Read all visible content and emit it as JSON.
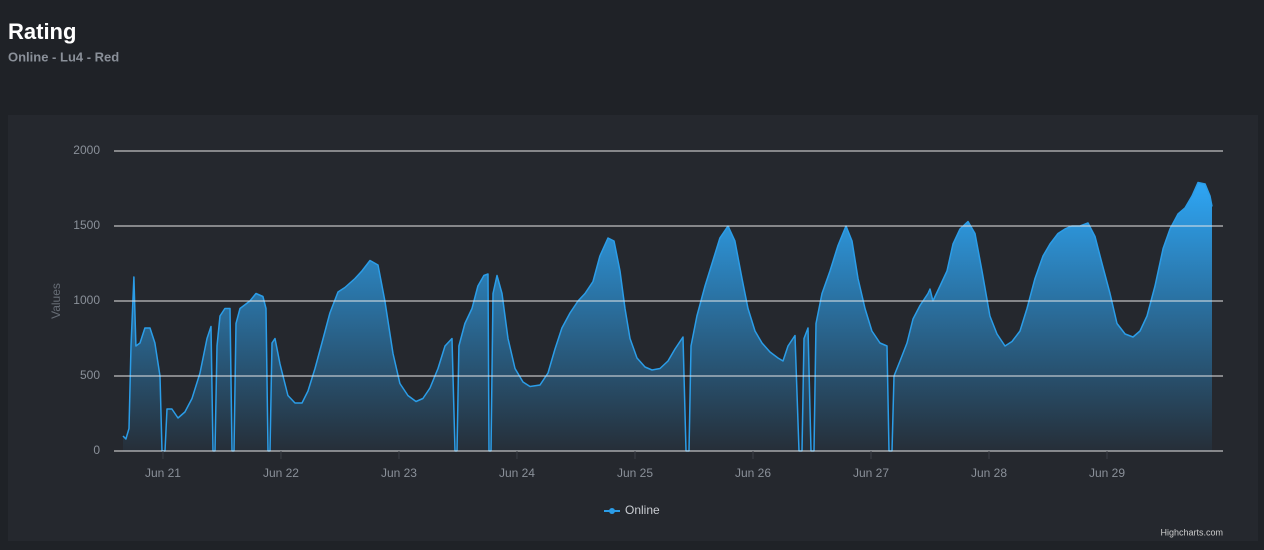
{
  "chart_data": {
    "type": "area",
    "title": "Rating",
    "subtitle": "Online - Lu4 - Red",
    "y_label": "Values",
    "credits": "Highcharts.com",
    "x": [
      20.661,
      20.686,
      20.712,
      20.729,
      20.754,
      20.771,
      20.805,
      20.847,
      20.89,
      20.932,
      20.975,
      20.992,
      21.017,
      21.034,
      21.076,
      21.127,
      21.186,
      21.246,
      21.314,
      21.373,
      21.407,
      21.424,
      21.441,
      21.458,
      21.483,
      21.525,
      21.568,
      21.585,
      21.602,
      21.619,
      21.653,
      21.737,
      21.788,
      21.847,
      21.873,
      21.89,
      21.907,
      21.924,
      21.949,
      21.992,
      22.059,
      22.119,
      22.178,
      22.229,
      22.288,
      22.347,
      22.415,
      22.483,
      22.542,
      22.627,
      22.686,
      22.754,
      22.822,
      22.881,
      22.949,
      23.008,
      23.076,
      23.144,
      23.203,
      23.263,
      23.331,
      23.39,
      23.449,
      23.475,
      23.492,
      23.508,
      23.559,
      23.619,
      23.669,
      23.72,
      23.754,
      23.763,
      23.78,
      23.797,
      23.831,
      23.873,
      23.924,
      23.983,
      24.051,
      24.11,
      24.195,
      24.263,
      24.322,
      24.381,
      24.449,
      24.517,
      24.576,
      24.644,
      24.703,
      24.771,
      24.822,
      24.873,
      24.915,
      24.958,
      25.017,
      25.085,
      25.144,
      25.212,
      25.28,
      25.339,
      25.407,
      25.432,
      25.458,
      25.475,
      25.525,
      25.593,
      25.653,
      25.72,
      25.788,
      25.847,
      25.907,
      25.958,
      26.017,
      26.076,
      26.144,
      26.212,
      26.254,
      26.297,
      26.356,
      26.39,
      26.415,
      26.432,
      26.466,
      26.492,
      26.517,
      26.534,
      26.585,
      26.653,
      26.72,
      26.788,
      26.839,
      26.89,
      26.949,
      27.008,
      27.076,
      27.136,
      27.153,
      27.178,
      27.195,
      27.246,
      27.305,
      27.356,
      27.415,
      27.483,
      27.5,
      27.525,
      27.585,
      27.644,
      27.695,
      27.754,
      27.822,
      27.881,
      27.941,
      28.008,
      28.068,
      28.136,
      28.195,
      28.263,
      28.322,
      28.39,
      28.458,
      28.517,
      28.585,
      28.644,
      28.703,
      28.771,
      28.839,
      28.898,
      28.958,
      29.025,
      29.085,
      29.153,
      29.22,
      29.28,
      29.339,
      29.407,
      29.475,
      29.534,
      29.602,
      29.661,
      29.72,
      29.771,
      29.831,
      29.873,
      29.89
    ],
    "series": [
      {
        "name": "Online",
        "color": "#2b9de8",
        "values": [
          100,
          80,
          150,
          700,
          1160,
          700,
          720,
          820,
          820,
          720,
          500,
          0,
          0,
          280,
          280,
          220,
          260,
          350,
          520,
          750,
          830,
          0,
          0,
          700,
          900,
          950,
          950,
          0,
          0,
          850,
          950,
          1000,
          1050,
          1030,
          950,
          0,
          0,
          720,
          750,
          580,
          370,
          320,
          320,
          400,
          550,
          720,
          920,
          1060,
          1090,
          1150,
          1200,
          1270,
          1240,
          1000,
          650,
          450,
          370,
          330,
          350,
          420,
          550,
          700,
          750,
          0,
          0,
          700,
          850,
          950,
          1100,
          1170,
          1180,
          0,
          0,
          1050,
          1170,
          1050,
          750,
          550,
          460,
          430,
          440,
          520,
          680,
          820,
          920,
          1000,
          1050,
          1130,
          1300,
          1420,
          1400,
          1200,
          950,
          750,
          620,
          560,
          540,
          550,
          600,
          680,
          760,
          0,
          0,
          700,
          900,
          1100,
          1250,
          1420,
          1500,
          1400,
          1150,
          950,
          800,
          720,
          660,
          620,
          600,
          700,
          770,
          0,
          0,
          750,
          820,
          0,
          0,
          850,
          1050,
          1200,
          1370,
          1500,
          1400,
          1150,
          950,
          800,
          720,
          700,
          0,
          0,
          500,
          600,
          720,
          880,
          970,
          1050,
          1080,
          1000,
          1100,
          1200,
          1380,
          1480,
          1530,
          1450,
          1200,
          900,
          780,
          700,
          730,
          800,
          950,
          1150,
          1300,
          1380,
          1450,
          1480,
          1500,
          1500,
          1520,
          1430,
          1250,
          1050,
          850,
          780,
          760,
          800,
          900,
          1100,
          1350,
          1480,
          1580,
          1620,
          1700,
          1790,
          1780,
          1700,
          1630
        ]
      }
    ],
    "xlim": [
      20.585,
      29.983
    ],
    "xticks": [
      {
        "value": 21,
        "label": "Jun 21"
      },
      {
        "value": 22,
        "label": "Jun 22"
      },
      {
        "value": 23,
        "label": "Jun 23"
      },
      {
        "value": 24,
        "label": "Jun 24"
      },
      {
        "value": 25,
        "label": "Jun 25"
      },
      {
        "value": 26,
        "label": "Jun 26"
      },
      {
        "value": 27,
        "label": "Jun 27"
      },
      {
        "value": 28,
        "label": "Jun 28"
      },
      {
        "value": 29,
        "label": "Jun 29"
      }
    ],
    "ylim": [
      0,
      2000
    ],
    "yticks": [
      0,
      500,
      1000,
      1500,
      2000
    ],
    "grid": true
  }
}
